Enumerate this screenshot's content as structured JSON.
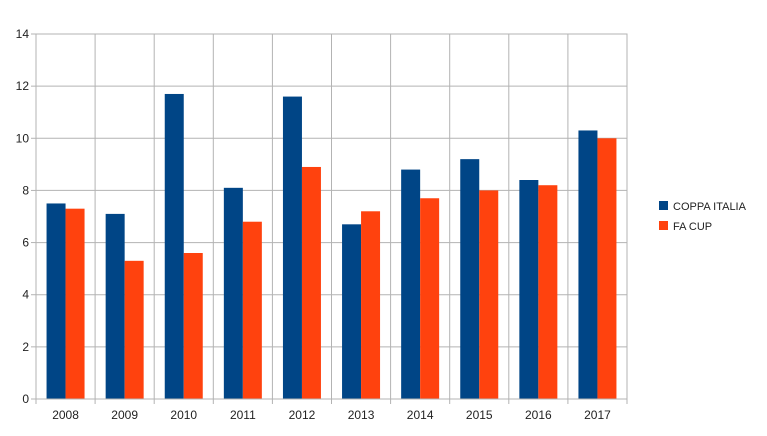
{
  "chart_data": {
    "type": "bar",
    "title": "",
    "xlabel": "",
    "ylabel": "",
    "categories": [
      "2008",
      "2009",
      "2010",
      "2011",
      "2012",
      "2013",
      "2014",
      "2015",
      "2016",
      "2017"
    ],
    "series": [
      {
        "name": "COPPA ITALIA",
        "color": "#004586",
        "values": [
          7.5,
          7.1,
          11.7,
          8.1,
          11.6,
          6.7,
          8.8,
          9.2,
          8.4,
          10.3
        ]
      },
      {
        "name": "FA CUP",
        "color": "#ff420e",
        "values": [
          7.3,
          5.3,
          5.6,
          6.8,
          8.9,
          7.2,
          7.7,
          8.0,
          8.2,
          10.0
        ]
      }
    ],
    "ylim": [
      0,
      14
    ],
    "yticks": [
      0,
      2,
      4,
      6,
      8,
      10,
      12,
      14
    ],
    "grid": true,
    "legend_position": "right"
  }
}
